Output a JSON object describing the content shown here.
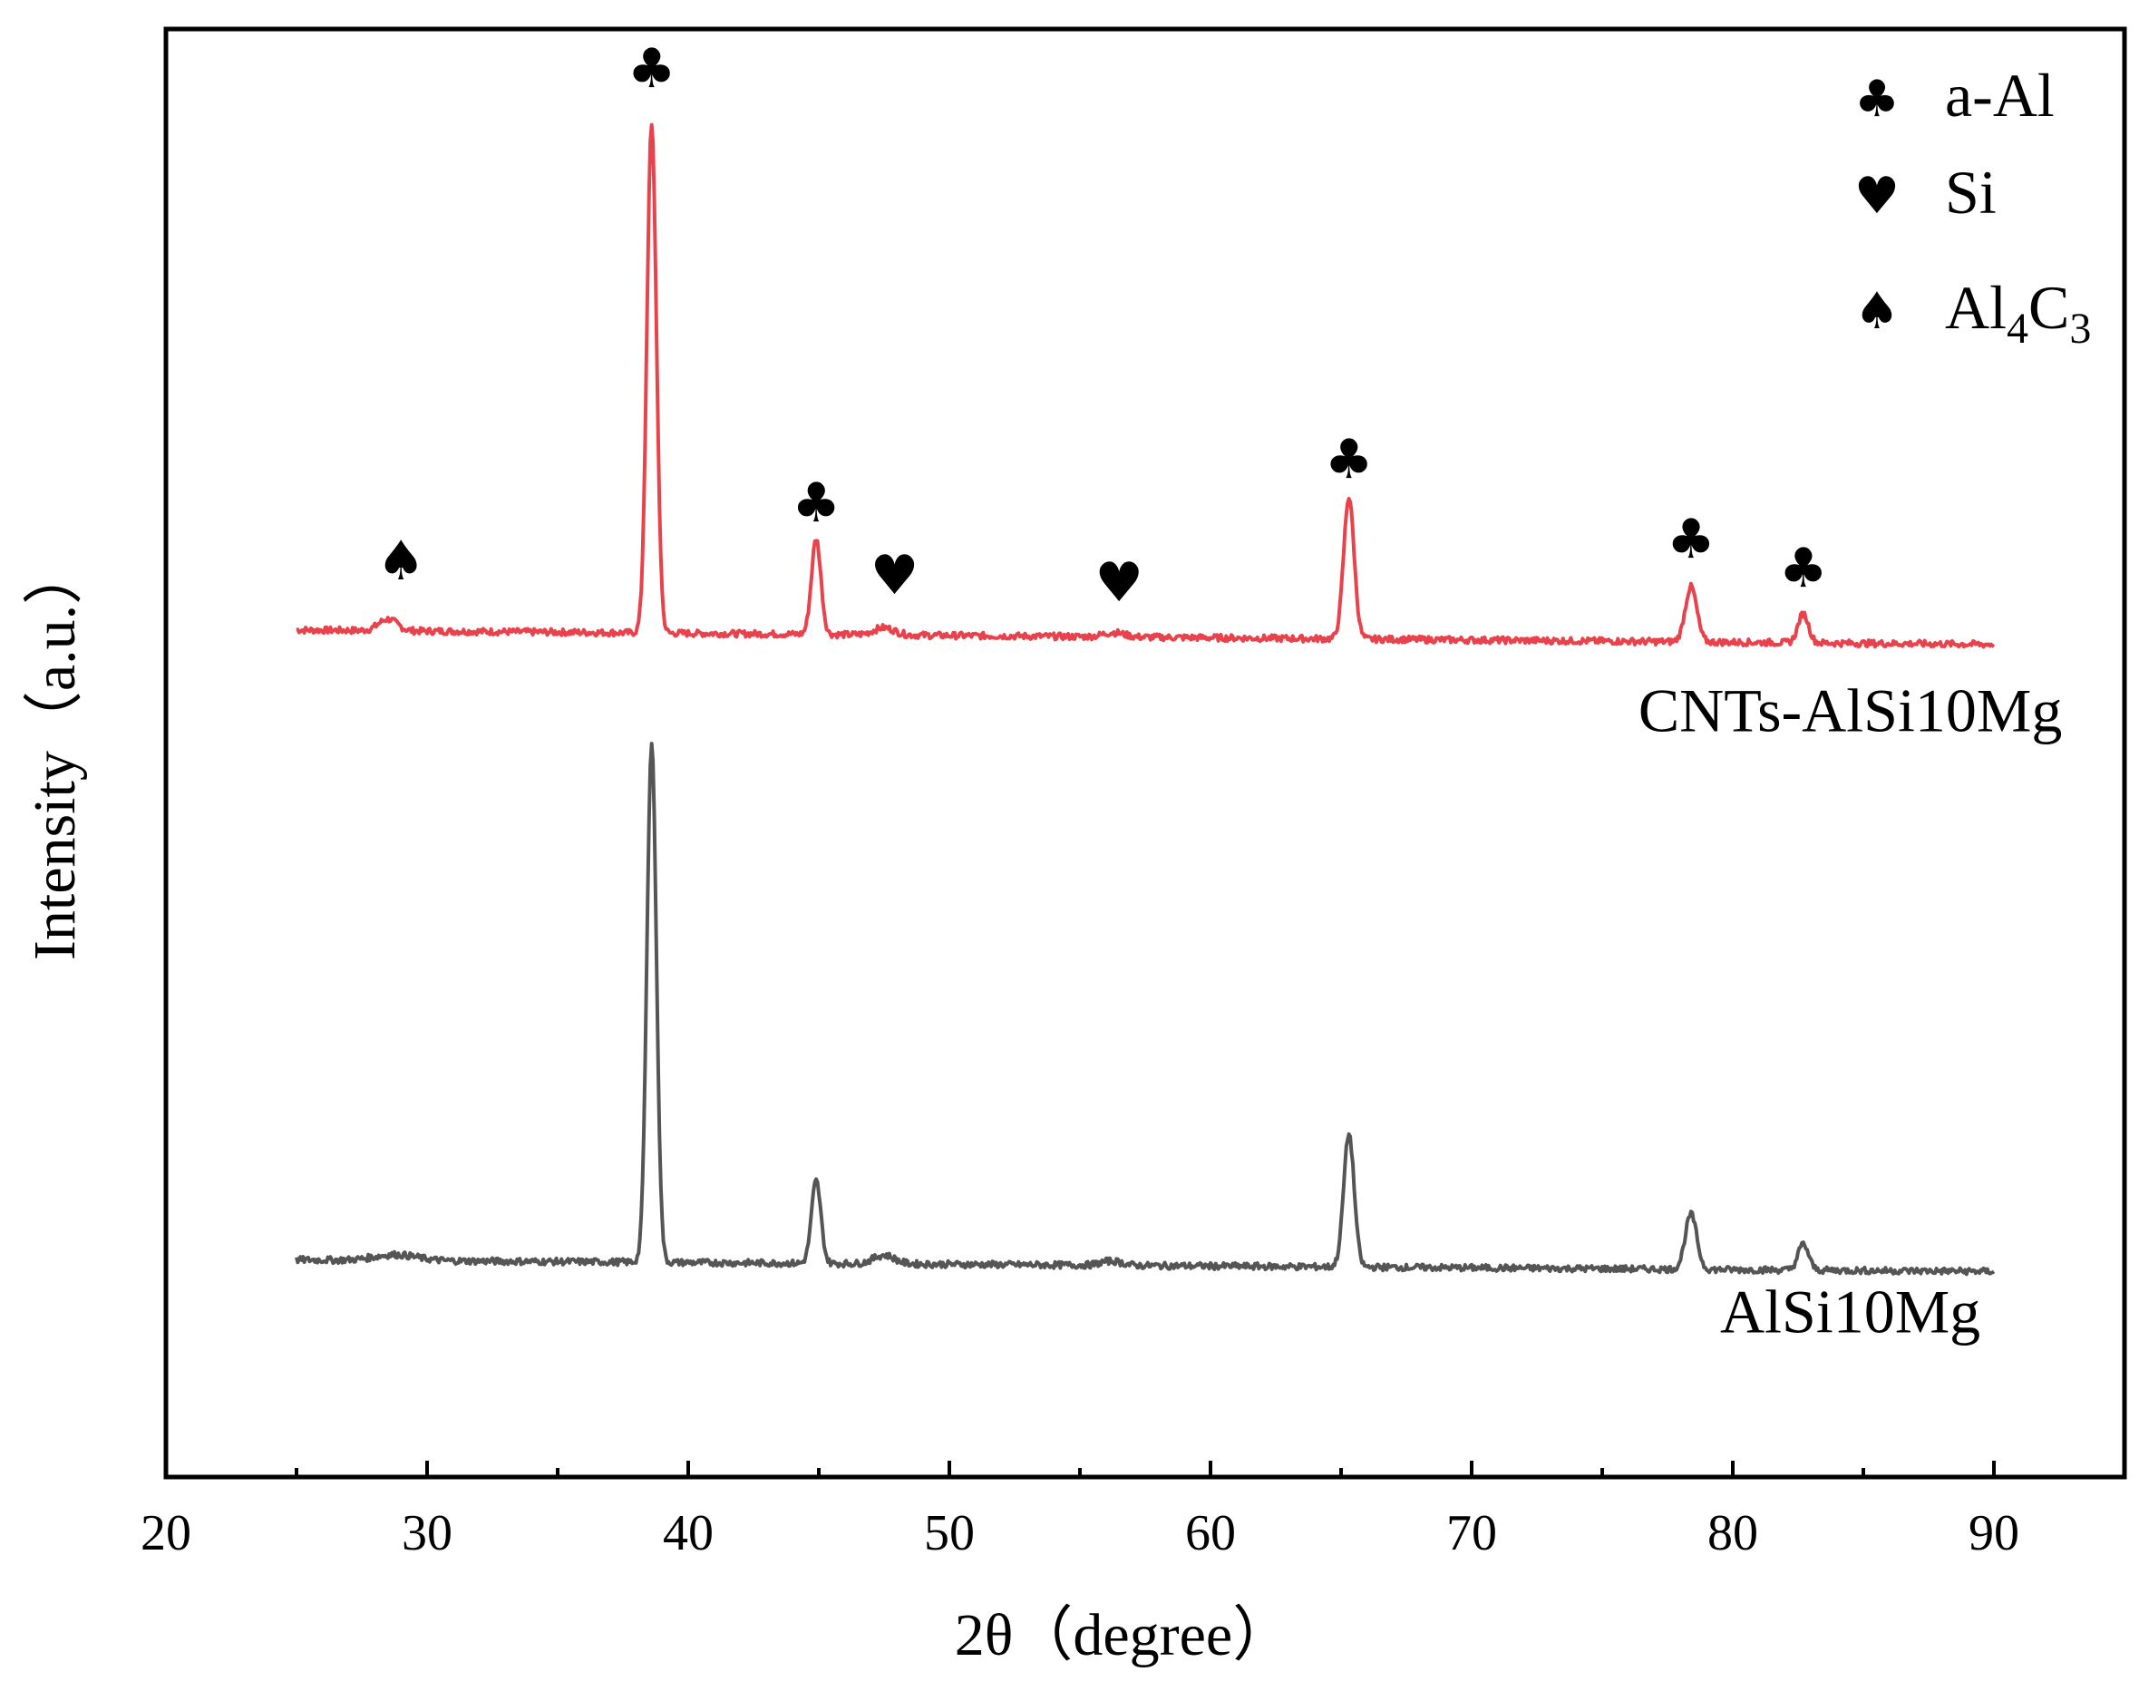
{
  "chart_data": {
    "type": "line",
    "title": "",
    "xlabel": "2θ（degree）",
    "ylabel": "Intensity（a.u.）",
    "xlim": [
      20,
      95
    ],
    "ylim": [
      0,
      10
    ],
    "x_ticks": [
      20,
      30,
      40,
      50,
      60,
      70,
      80,
      90
    ],
    "x_tick_labels": [
      "20",
      "30",
      "40",
      "50",
      "60",
      "70",
      "80",
      "90"
    ],
    "x_minor_ticks": [
      25,
      35,
      45,
      55,
      65,
      75,
      85
    ],
    "grid": false,
    "series": [
      {
        "name": "CNTs-AlSi10Mg",
        "color": "#e8434c",
        "x_range": [
          25,
          90
        ],
        "baseline_start": 5.85,
        "baseline_end": 5.75,
        "peaks": [
          {
            "x": 28.5,
            "height": 0.08,
            "width": 0.35
          },
          {
            "x": 38.6,
            "height": 3.52,
            "width": 0.18
          },
          {
            "x": 44.9,
            "height": 0.66,
            "width": 0.18
          },
          {
            "x": 47.5,
            "height": 0.05,
            "width": 0.4
          },
          {
            "x": 56.3,
            "height": 0.03,
            "width": 0.4
          },
          {
            "x": 65.3,
            "height": 0.98,
            "width": 0.2
          },
          {
            "x": 78.4,
            "height": 0.38,
            "width": 0.22
          },
          {
            "x": 82.7,
            "height": 0.2,
            "width": 0.2
          }
        ]
      },
      {
        "name": "AlSi10Mg",
        "color": "#555555",
        "x_range": [
          25,
          90
        ],
        "baseline_start": 1.5,
        "baseline_end": 1.42,
        "peaks": [
          {
            "x": 28.8,
            "height": 0.04,
            "width": 0.8
          },
          {
            "x": 38.6,
            "height": 3.59,
            "width": 0.18
          },
          {
            "x": 44.9,
            "height": 0.57,
            "width": 0.18
          },
          {
            "x": 47.5,
            "height": 0.06,
            "width": 0.4
          },
          {
            "x": 56.2,
            "height": 0.03,
            "width": 0.4
          },
          {
            "x": 65.3,
            "height": 0.92,
            "width": 0.2
          },
          {
            "x": 78.4,
            "height": 0.38,
            "width": 0.22
          },
          {
            "x": 82.7,
            "height": 0.18,
            "width": 0.2
          }
        ]
      }
    ],
    "series_labels": [
      {
        "text": "CNTs-AlSi10Mg",
        "x": 84.5,
        "y": 5.15
      },
      {
        "text": "AlSi10Mg",
        "x": 84.5,
        "y": 1.0
      }
    ],
    "annotations": [
      {
        "phase": "Al4C3",
        "symbol": "♠",
        "x": 29.0,
        "y": 6.2
      },
      {
        "phase": "a-Al",
        "symbol": "♣",
        "x": 38.6,
        "y": 9.6
      },
      {
        "phase": "a-Al",
        "symbol": "♣",
        "x": 44.9,
        "y": 6.6
      },
      {
        "phase": "Si",
        "symbol": "♥",
        "x": 47.9,
        "y": 6.1
      },
      {
        "phase": "Si",
        "symbol": "♥",
        "x": 56.5,
        "y": 6.05
      },
      {
        "phase": "a-Al",
        "symbol": "♣",
        "x": 65.3,
        "y": 6.9
      },
      {
        "phase": "a-Al",
        "symbol": "♣",
        "x": 78.4,
        "y": 6.35
      },
      {
        "phase": "a-Al",
        "symbol": "♣",
        "x": 82.7,
        "y": 6.15
      }
    ],
    "legend": {
      "position": "top-right",
      "items": [
        {
          "symbol": "♣",
          "label": "a-Al"
        },
        {
          "symbol": "♥",
          "label": "Si"
        },
        {
          "symbol": "♠",
          "label": "Al",
          "sub1": "4",
          "mid": "C",
          "sub2": "3"
        }
      ]
    }
  }
}
